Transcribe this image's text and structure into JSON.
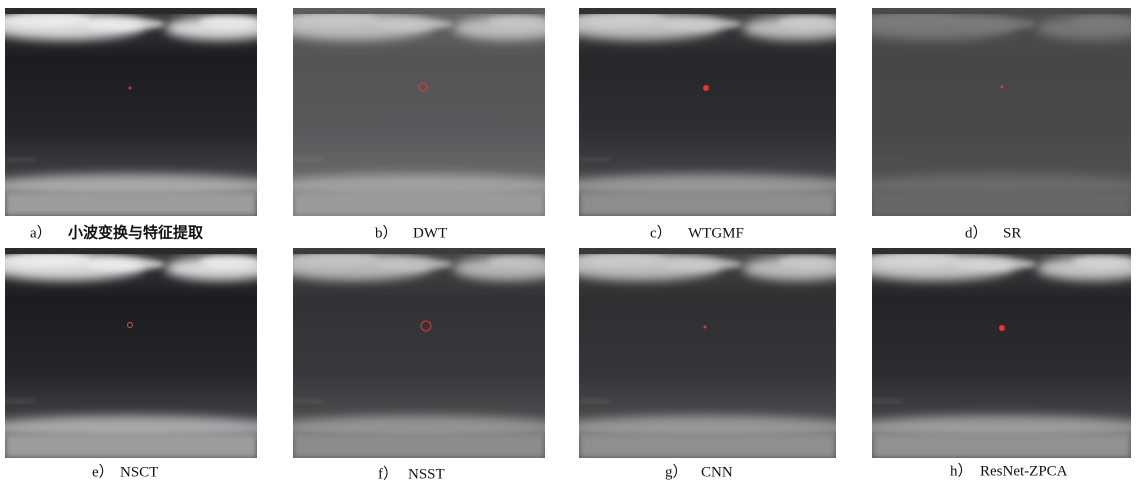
{
  "panels": [
    {
      "label": "a）",
      "caption": "小波变换与特征提取"
    },
    {
      "label": "b）",
      "caption": "DWT"
    },
    {
      "label": "c）",
      "caption": "WTGMF"
    },
    {
      "label": "d）",
      "caption": "SR"
    },
    {
      "label": "e）",
      "caption": "NSCT"
    },
    {
      "label": "f）",
      "caption": "NSST"
    },
    {
      "label": "g）",
      "caption": "CNN"
    },
    {
      "label": "h）",
      "caption": "ResNet-ZPCA"
    }
  ]
}
